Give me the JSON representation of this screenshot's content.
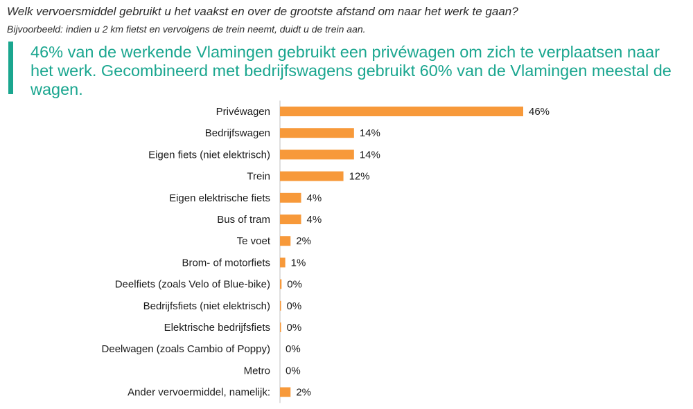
{
  "header": {
    "question": "Welk vervoersmiddel gebruikt u het vaakst en over de grootste afstand om naar het werk te gaan?",
    "subquestion": "Bijvoorbeeld: indien u 2 km fietst en vervolgens de trein neemt, duidt u de trein aan.",
    "headline": "46% van de werkende Vlamingen gebruikt een privéwagen om zich te verplaatsen naar het werk. Gecombineerd met bedrijfswagens gebruikt 60% van de Vlamingen meestal de wagen."
  },
  "colors": {
    "accent": "#1aa68f",
    "bar": "#f7993a",
    "axis": "#bfbfbf"
  },
  "chart_data": {
    "type": "bar",
    "orientation": "horizontal",
    "categories": [
      "Privéwagen",
      "Bedrijfswagen",
      "Eigen fiets (niet elektrisch)",
      "Trein",
      "Eigen elektrische fiets",
      "Bus of tram",
      "Te voet",
      "Brom- of motorfiets",
      "Deelfiets (zoals Velo of Blue-bike)",
      "Bedrijfsfiets (niet elektrisch)",
      "Elektrische bedrijfsfiets",
      "Deelwagen (zoals Cambio of Poppy)",
      "Metro",
      "Ander vervoermiddel, namelijk:"
    ],
    "values": [
      46,
      14,
      14,
      12,
      4,
      4,
      2,
      1,
      0.3,
      0.2,
      0.2,
      0,
      0,
      2
    ],
    "labels": [
      "46%",
      "14%",
      "14%",
      "12%",
      "4%",
      "4%",
      "2%",
      "1%",
      "0%",
      "0%",
      "0%",
      "0%",
      "0%",
      "2%"
    ],
    "xlim": [
      0,
      46
    ],
    "grid": false,
    "legend": "none"
  }
}
